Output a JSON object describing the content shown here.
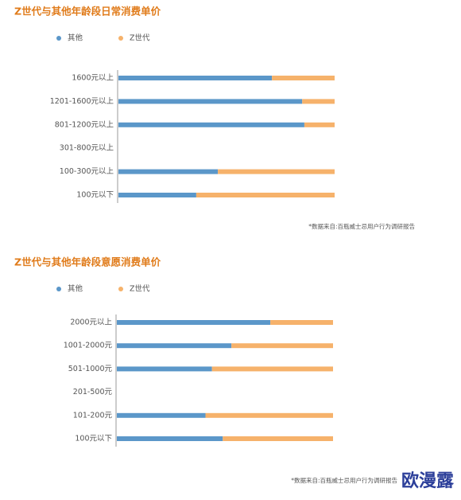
{
  "chart_data": [
    {
      "type": "bar",
      "stacking": "percent",
      "orientation": "horizontal",
      "title": "Z世代与其他年龄段日常消费单价",
      "categories": [
        "1600元以上",
        "1201-1600元以上",
        "801-1200元以上",
        "301-800元以上",
        "100-300元以上",
        "100元以下"
      ],
      "series": [
        {
          "name": "其他",
          "color": "#5b97c9",
          "values": [
            71,
            85,
            86,
            null,
            46,
            36
          ]
        },
        {
          "name": "Z世代",
          "color": "#f6b26b",
          "values": [
            29,
            15,
            14,
            null,
            54,
            64
          ]
        }
      ],
      "xlim": [
        0,
        100
      ],
      "note": "*数据来自:百瓶威士忌用户行为调研报告"
    },
    {
      "type": "bar",
      "stacking": "percent",
      "orientation": "horizontal",
      "title": "Z世代与其他年龄段意愿消费单价",
      "categories": [
        "2000元以上",
        "1001-2000元",
        "501-1000元",
        "201-500元",
        "101-200元",
        "100元以下"
      ],
      "series": [
        {
          "name": "其他",
          "color": "#5b97c9",
          "values": [
            71,
            53,
            44,
            null,
            41,
            49
          ]
        },
        {
          "name": "Z世代",
          "color": "#f6b26b",
          "values": [
            29,
            47,
            56,
            null,
            59,
            51
          ]
        }
      ],
      "xlim": [
        0,
        100
      ],
      "note": "*数据来自:百瓶威士忌用户行为调研报告"
    }
  ],
  "watermark": "欧漫露"
}
